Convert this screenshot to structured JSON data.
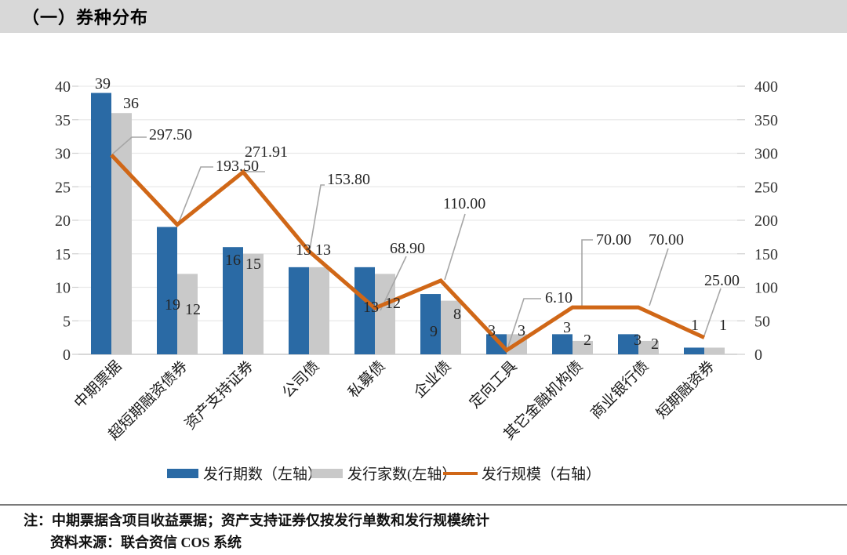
{
  "header": {
    "title": "（一）券种分布"
  },
  "chart_data": {
    "type": "combo-bar-line",
    "title": "券种分布",
    "categories": [
      "中期票据",
      "超短期融资债券",
      "资产支持证券",
      "公司债",
      "私募债",
      "企业债",
      "定向工具",
      "其它金融机构债",
      "商业银行债",
      "短期融资券"
    ],
    "series": [
      {
        "name": "发行期数（左轴）",
        "type": "bar",
        "axis": "left",
        "color": "#2a6aa5",
        "values": [
          39,
          19,
          16,
          13,
          13,
          9,
          3,
          3,
          3,
          1
        ]
      },
      {
        "name": "发行家数(左轴）",
        "type": "bar",
        "axis": "left",
        "color": "#c9c9c9",
        "values": [
          36,
          12,
          15,
          13,
          12,
          8,
          3,
          2,
          2,
          1
        ]
      },
      {
        "name": "发行规模（右轴）",
        "type": "line",
        "axis": "right",
        "color": "#d06717",
        "values": [
          297.5,
          193.5,
          271.91,
          153.8,
          68.9,
          110.0,
          6.1,
          70.0,
          70.0,
          25.0
        ],
        "value_labels": [
          "297.50",
          "193.50",
          "271.91",
          "153.80",
          "68.90",
          "110.00",
          "6.10",
          "70.00",
          "70.00",
          "25.00"
        ]
      }
    ],
    "left_axis": {
      "min": 0,
      "max": 40,
      "step": 5,
      "ticks": [
        "0",
        "5",
        "10",
        "15",
        "20",
        "25",
        "30",
        "35",
        "40"
      ]
    },
    "right_axis": {
      "min": 0,
      "max": 400,
      "step": 50,
      "ticks": [
        "0",
        "50",
        "100",
        "150",
        "200",
        "250",
        "300",
        "350",
        "400"
      ]
    },
    "grid": true,
    "legend_position": "bottom"
  },
  "notes": {
    "note_label": "注：",
    "note_text": "中期票据含项目收益票据；资产支持证券仅按发行单数和发行规模统计",
    "source_label": "资料来源：",
    "source_text": "联合资信 COS 系统"
  },
  "colors": {
    "bar_primary": "#2a6aa5",
    "bar_secondary": "#c9c9c9",
    "line": "#d06717",
    "header_bg": "#d8d8d8",
    "grid": "#e9e9e9",
    "baseline": "#c0c0c0",
    "leader": "#a6a6a6",
    "label_text": "#262626"
  }
}
